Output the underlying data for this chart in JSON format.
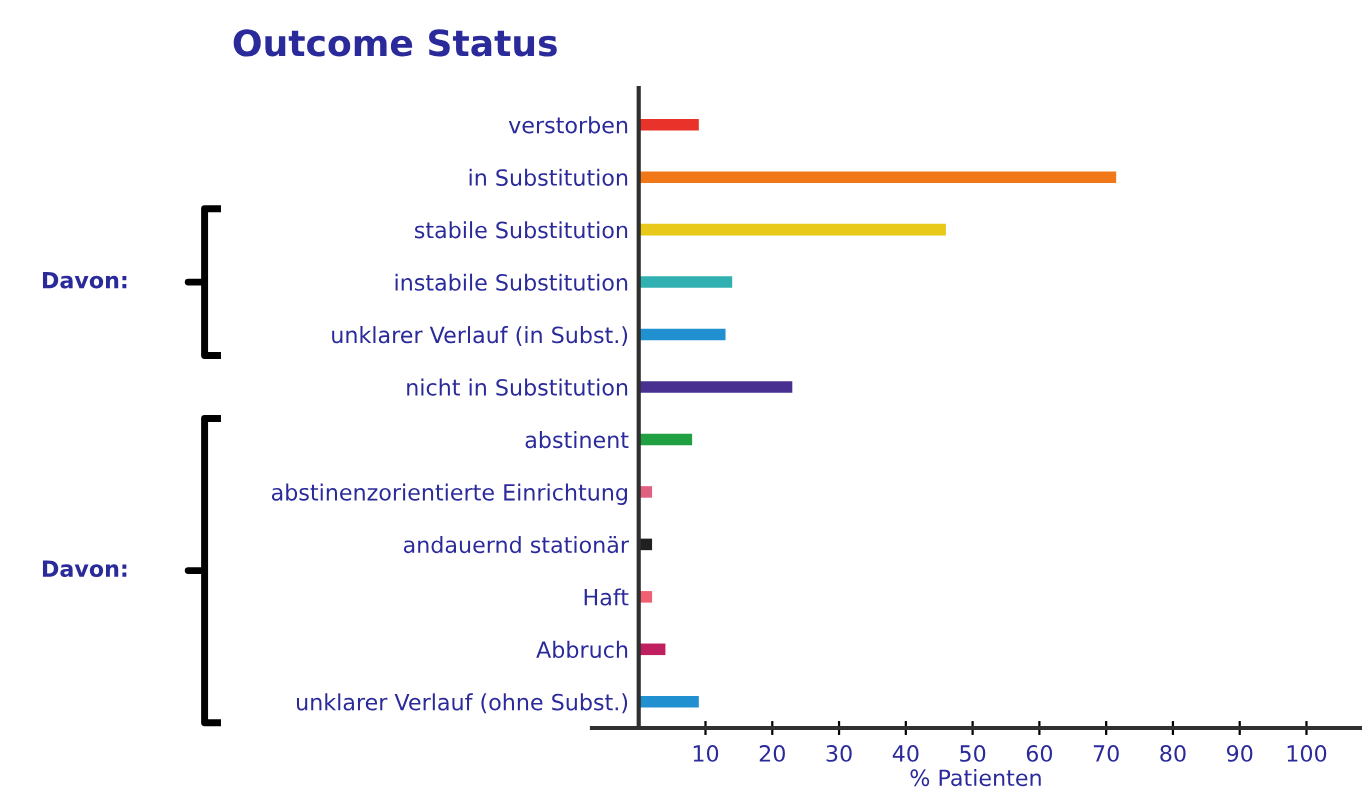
{
  "chart_data": {
    "type": "bar",
    "orientation": "horizontal",
    "title": "Outcome Status",
    "xlabel": "% Patienten",
    "categories": [
      "verstorben",
      "in Substitution",
      "stabile Substitution",
      "instabile Substitution",
      "unklarer Verlauf (in Subst.)",
      "nicht in Substitution",
      "abstinent",
      "abstinenzorientierte Einrichtung",
      "andauernd stationär",
      "Haft",
      "Abbruch",
      "unklarer Verlauf (ohne Subst.)"
    ],
    "values": [
      9,
      71.5,
      46,
      14,
      13,
      23,
      8,
      2,
      2,
      2,
      4,
      9
    ],
    "colors": [
      "#e8322a",
      "#f07818",
      "#e8c818",
      "#30b0b0",
      "#2090d0",
      "#483090",
      "#20a040",
      "#e06080",
      "#202020",
      "#f06070",
      "#c02060",
      "#2090d0"
    ],
    "xlim": [
      -7,
      108
    ],
    "xticks": [
      10,
      20,
      30,
      40,
      50,
      60,
      70,
      80,
      90,
      100
    ],
    "annotations": [
      "Davon:",
      "Davon:"
    ],
    "grid": false,
    "legend": false
  }
}
